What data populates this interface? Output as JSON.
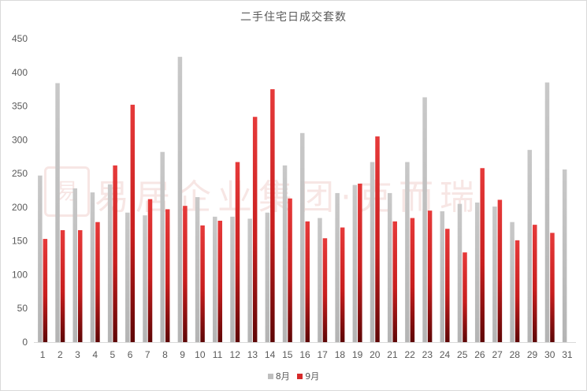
{
  "chart_data": {
    "type": "bar",
    "title": "二手住宅日成交套数",
    "xlabel": "",
    "ylabel": "",
    "ylim": [
      0,
      450
    ],
    "yticks": [
      0,
      50,
      100,
      150,
      200,
      250,
      300,
      350,
      400,
      450
    ],
    "grid": false,
    "legend_position": "bottom",
    "categories": [
      "1",
      "2",
      "3",
      "4",
      "5",
      "6",
      "7",
      "8",
      "9",
      "10",
      "11",
      "12",
      "13",
      "14",
      "15",
      "16",
      "17",
      "18",
      "19",
      "20",
      "21",
      "22",
      "23",
      "24",
      "25",
      "26",
      "27",
      "28",
      "29",
      "30",
      "31"
    ],
    "series": [
      {
        "name": "8月",
        "color": "#bfbfbf",
        "values": [
          247,
          384,
          228,
          222,
          234,
          192,
          188,
          282,
          423,
          215,
          186,
          186,
          183,
          192,
          262,
          310,
          184,
          221,
          233,
          267,
          221,
          267,
          363,
          194,
          205,
          207,
          201,
          178,
          285,
          385,
          256
        ]
      },
      {
        "name": "9月",
        "color": "#d62a2a",
        "values": [
          153,
          166,
          166,
          178,
          262,
          352,
          212,
          197,
          202,
          173,
          180,
          267,
          334,
          375,
          213,
          179,
          154,
          170,
          235,
          305,
          179,
          184,
          195,
          168,
          133,
          258,
          211,
          151,
          174,
          162,
          null
        ]
      }
    ]
  },
  "watermark": {
    "seal_text": "易",
    "text": "易居企业集团·克而瑞"
  }
}
